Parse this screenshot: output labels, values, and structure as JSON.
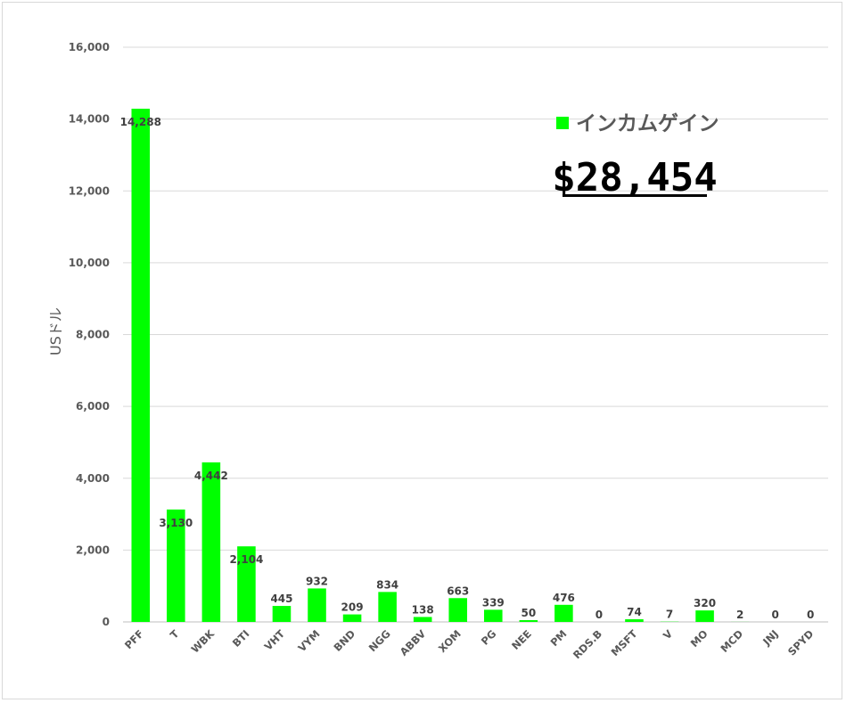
{
  "chart_data": {
    "type": "bar",
    "ylabel": "USドル",
    "ylim": [
      0,
      16000
    ],
    "yticks": [
      0,
      2000,
      4000,
      6000,
      8000,
      10000,
      12000,
      14000,
      16000
    ],
    "ytick_labels": [
      "0",
      "2,000",
      "4,000",
      "6,000",
      "8,000",
      "10,000",
      "12,000",
      "14,000",
      "16,000"
    ],
    "grid": true,
    "categories": [
      "PFF",
      "T",
      "WBK",
      "BTI",
      "VHT",
      "VYM",
      "BND",
      "NGG",
      "ABBV",
      "XOM",
      "PG",
      "NEE",
      "PM",
      "RDS.B",
      "MSFT",
      "V",
      "MO",
      "MCD",
      "JNJ",
      "SPYD"
    ],
    "series": [
      {
        "name": "インカムゲイン",
        "color": "#00ff00",
        "values": [
          14288,
          3130,
          4442,
          2104,
          445,
          932,
          209,
          834,
          138,
          663,
          339,
          50,
          476,
          0,
          74,
          7,
          320,
          2,
          0,
          0
        ],
        "data_labels": [
          "14,288",
          "3,130",
          "4,442",
          "2,104",
          "445",
          "932",
          "209",
          "834",
          "138",
          "663",
          "339",
          "50",
          "476",
          "0",
          "74",
          "7",
          "320",
          "2",
          "0",
          "0"
        ]
      }
    ],
    "legend_position": "top-right",
    "total_label": "$28,454"
  }
}
